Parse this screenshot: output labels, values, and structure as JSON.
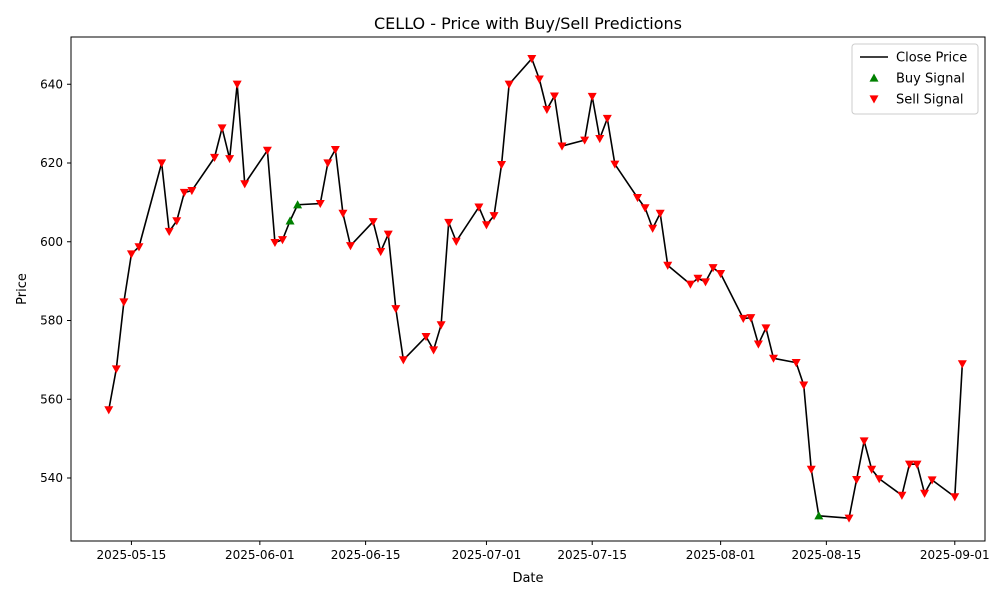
{
  "chart_data": {
    "type": "line",
    "title": "CELLO - Price with Buy/Sell Predictions",
    "xlabel": "Date",
    "ylabel": "Price",
    "ylim": [
      524,
      652
    ],
    "xlim": [
      "2025-05-07",
      "2025-09-05"
    ],
    "grid": false,
    "legend_position": "top-right",
    "x_ticks": [
      "2025-05-15",
      "2025-06-01",
      "2025-06-15",
      "2025-07-01",
      "2025-07-15",
      "2025-08-01",
      "2025-08-15",
      "2025-09-01"
    ],
    "y_ticks": [
      540,
      560,
      580,
      600,
      620,
      640
    ],
    "legend": [
      {
        "label": "Close Price",
        "kind": "line",
        "color": "#000000"
      },
      {
        "label": "Buy Signal",
        "kind": "triangle-up",
        "color": "#008000"
      },
      {
        "label": "Sell Signal",
        "kind": "triangle-down",
        "color": "#ff0000"
      }
    ],
    "series": [
      {
        "name": "Close Price",
        "color": "#000000",
        "points": [
          [
            "2025-05-12",
            557.3
          ],
          [
            "2025-05-13",
            567.7
          ],
          [
            "2025-05-14",
            584.7
          ],
          [
            "2025-05-15",
            596.9
          ],
          [
            "2025-05-16",
            598.7
          ],
          [
            "2025-05-19",
            620.0
          ],
          [
            "2025-05-20",
            602.6
          ],
          [
            "2025-05-21",
            605.3
          ],
          [
            "2025-05-22",
            612.5
          ],
          [
            "2025-05-23",
            613.0
          ],
          [
            "2025-05-26",
            621.4
          ],
          [
            "2025-05-27",
            628.9
          ],
          [
            "2025-05-28",
            621.1
          ],
          [
            "2025-05-29",
            640.0
          ],
          [
            "2025-05-30",
            614.7
          ],
          [
            "2025-06-02",
            623.2
          ],
          [
            "2025-06-03",
            599.8
          ],
          [
            "2025-06-04",
            600.5
          ],
          [
            "2025-06-05",
            605.3
          ],
          [
            "2025-06-06",
            609.4
          ],
          [
            "2025-06-09",
            609.7
          ],
          [
            "2025-06-10",
            620.0
          ],
          [
            "2025-06-11",
            623.4
          ],
          [
            "2025-06-12",
            607.2
          ],
          [
            "2025-06-13",
            599.0
          ],
          [
            "2025-06-16",
            605.1
          ],
          [
            "2025-06-17",
            597.5
          ],
          [
            "2025-06-18",
            601.9
          ],
          [
            "2025-06-19",
            583.0
          ],
          [
            "2025-06-20",
            570.0
          ],
          [
            "2025-06-23",
            575.9
          ],
          [
            "2025-06-24",
            572.5
          ],
          [
            "2025-06-25",
            578.9
          ],
          [
            "2025-06-26",
            604.9
          ],
          [
            "2025-06-27",
            600.1
          ],
          [
            "2025-06-30",
            608.8
          ],
          [
            "2025-07-01",
            604.3
          ],
          [
            "2025-07-02",
            606.6
          ],
          [
            "2025-07-03",
            619.6
          ],
          [
            "2025-07-04",
            640.0
          ],
          [
            "2025-07-07",
            646.5
          ],
          [
            "2025-07-08",
            641.3
          ],
          [
            "2025-07-09",
            633.6
          ],
          [
            "2025-07-10",
            637.0
          ],
          [
            "2025-07-11",
            624.3
          ],
          [
            "2025-07-14",
            625.8
          ],
          [
            "2025-07-15",
            636.9
          ],
          [
            "2025-07-16",
            626.2
          ],
          [
            "2025-07-17",
            631.3
          ],
          [
            "2025-07-18",
            619.7
          ],
          [
            "2025-07-21",
            611.2
          ],
          [
            "2025-07-22",
            608.6
          ],
          [
            "2025-07-23",
            603.4
          ],
          [
            "2025-07-24",
            607.2
          ],
          [
            "2025-07-25",
            594.0
          ],
          [
            "2025-07-28",
            589.2
          ],
          [
            "2025-07-29",
            590.7
          ],
          [
            "2025-07-30",
            589.8
          ],
          [
            "2025-07-31",
            593.4
          ],
          [
            "2025-08-01",
            591.9
          ],
          [
            "2025-08-04",
            580.5
          ],
          [
            "2025-08-05",
            580.7
          ],
          [
            "2025-08-06",
            574.0
          ],
          [
            "2025-08-07",
            578.1
          ],
          [
            "2025-08-08",
            570.4
          ],
          [
            "2025-08-11",
            569.3
          ],
          [
            "2025-08-12",
            563.6
          ],
          [
            "2025-08-13",
            542.2
          ],
          [
            "2025-08-14",
            530.4
          ],
          [
            "2025-08-18",
            529.8
          ],
          [
            "2025-08-19",
            539.6
          ],
          [
            "2025-08-20",
            549.4
          ],
          [
            "2025-08-21",
            542.2
          ],
          [
            "2025-08-22",
            539.8
          ],
          [
            "2025-08-25",
            535.6
          ],
          [
            "2025-08-26",
            543.5
          ],
          [
            "2025-08-27",
            543.5
          ],
          [
            "2025-08-28",
            536.1
          ],
          [
            "2025-08-29",
            539.5
          ],
          [
            "2025-09-01",
            535.2
          ],
          [
            "2025-09-02",
            569.0
          ]
        ]
      }
    ],
    "buy_signals": [
      [
        "2025-06-05",
        605.3
      ],
      [
        "2025-06-06",
        609.4
      ],
      [
        "2025-08-14",
        530.4
      ]
    ],
    "sell_signals": [
      [
        "2025-05-12",
        557.3
      ],
      [
        "2025-05-13",
        567.7
      ],
      [
        "2025-05-14",
        584.7
      ],
      [
        "2025-05-15",
        596.9
      ],
      [
        "2025-05-16",
        598.7
      ],
      [
        "2025-05-19",
        620.0
      ],
      [
        "2025-05-20",
        602.6
      ],
      [
        "2025-05-21",
        605.3
      ],
      [
        "2025-05-22",
        612.5
      ],
      [
        "2025-05-23",
        613.0
      ],
      [
        "2025-05-26",
        621.4
      ],
      [
        "2025-05-27",
        628.9
      ],
      [
        "2025-05-28",
        621.1
      ],
      [
        "2025-05-29",
        640.0
      ],
      [
        "2025-05-30",
        614.7
      ],
      [
        "2025-06-02",
        623.2
      ],
      [
        "2025-06-03",
        599.8
      ],
      [
        "2025-06-04",
        600.5
      ],
      [
        "2025-06-09",
        609.7
      ],
      [
        "2025-06-10",
        620.0
      ],
      [
        "2025-06-11",
        623.4
      ],
      [
        "2025-06-12",
        607.2
      ],
      [
        "2025-06-13",
        599.0
      ],
      [
        "2025-06-16",
        605.1
      ],
      [
        "2025-06-17",
        597.5
      ],
      [
        "2025-06-18",
        601.9
      ],
      [
        "2025-06-19",
        583.0
      ],
      [
        "2025-06-20",
        570.0
      ],
      [
        "2025-06-23",
        575.9
      ],
      [
        "2025-06-24",
        572.5
      ],
      [
        "2025-06-25",
        578.9
      ],
      [
        "2025-06-26",
        604.9
      ],
      [
        "2025-06-27",
        600.1
      ],
      [
        "2025-06-30",
        608.8
      ],
      [
        "2025-07-01",
        604.3
      ],
      [
        "2025-07-02",
        606.6
      ],
      [
        "2025-07-03",
        619.6
      ],
      [
        "2025-07-04",
        640.0
      ],
      [
        "2025-07-07",
        646.5
      ],
      [
        "2025-07-08",
        641.3
      ],
      [
        "2025-07-09",
        633.6
      ],
      [
        "2025-07-10",
        637.0
      ],
      [
        "2025-07-11",
        624.3
      ],
      [
        "2025-07-14",
        625.8
      ],
      [
        "2025-07-15",
        636.9
      ],
      [
        "2025-07-16",
        626.2
      ],
      [
        "2025-07-17",
        631.3
      ],
      [
        "2025-07-18",
        619.7
      ],
      [
        "2025-07-21",
        611.2
      ],
      [
        "2025-07-22",
        608.6
      ],
      [
        "2025-07-23",
        603.4
      ],
      [
        "2025-07-24",
        607.2
      ],
      [
        "2025-07-25",
        594.0
      ],
      [
        "2025-07-28",
        589.2
      ],
      [
        "2025-07-29",
        590.7
      ],
      [
        "2025-07-30",
        589.8
      ],
      [
        "2025-07-31",
        593.4
      ],
      [
        "2025-08-01",
        591.9
      ],
      [
        "2025-08-04",
        580.5
      ],
      [
        "2025-08-05",
        580.7
      ],
      [
        "2025-08-06",
        574.0
      ],
      [
        "2025-08-07",
        578.1
      ],
      [
        "2025-08-08",
        570.4
      ],
      [
        "2025-08-11",
        569.3
      ],
      [
        "2025-08-12",
        563.6
      ],
      [
        "2025-08-13",
        542.2
      ],
      [
        "2025-08-18",
        529.8
      ],
      [
        "2025-08-19",
        539.6
      ],
      [
        "2025-08-20",
        549.4
      ],
      [
        "2025-08-21",
        542.2
      ],
      [
        "2025-08-22",
        539.8
      ],
      [
        "2025-08-25",
        535.6
      ],
      [
        "2025-08-26",
        543.5
      ],
      [
        "2025-08-27",
        543.5
      ],
      [
        "2025-08-28",
        536.1
      ],
      [
        "2025-08-29",
        539.5
      ],
      [
        "2025-09-01",
        535.2
      ],
      [
        "2025-09-02",
        569.0
      ]
    ]
  }
}
